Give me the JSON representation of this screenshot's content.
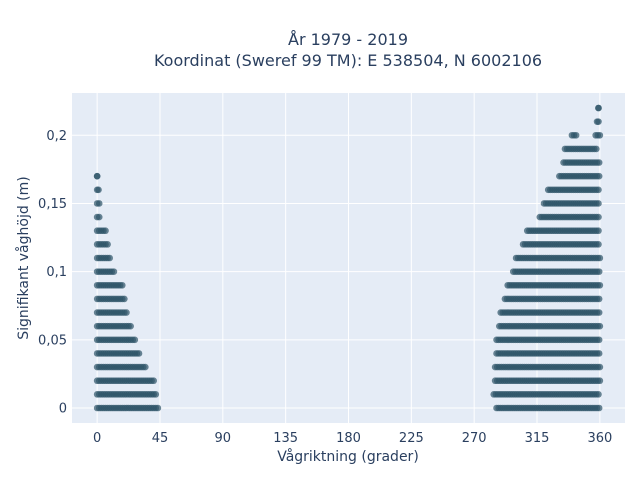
{
  "chart_data": {
    "type": "scatter",
    "title_lines": [
      "År 1979 - 2019",
      "Koordinat (Sweref 99 TM): E 538504, N 6002106"
    ],
    "xlabel": "Vågriktning (grader)",
    "ylabel": "Signifikant våghöjd (m)",
    "xlim": [
      -18,
      378
    ],
    "ylim": [
      -0.011,
      0.231
    ],
    "xticks": [
      0,
      45,
      90,
      135,
      180,
      225,
      270,
      315,
      360
    ],
    "xtick_labels": [
      "0",
      "45",
      "90",
      "135",
      "180",
      "225",
      "270",
      "315",
      "360"
    ],
    "yticks": [
      0,
      0.05,
      0.1,
      0.15,
      0.2
    ],
    "ytick_labels": [
      "0",
      "0,05",
      "0,1",
      "0,15",
      "0,2"
    ],
    "grid": true,
    "colors": {
      "marker": "#2e5468",
      "plot_bg": "#e5ecf6",
      "grid": "#ffffff",
      "text": "#2a3f5f"
    },
    "point_bands": [
      {
        "y": 0.0,
        "x_ranges": [
          [
            0,
            44
          ],
          [
            286,
            360
          ]
        ]
      },
      {
        "y": 0.01,
        "x_ranges": [
          [
            0,
            43
          ],
          [
            284,
            360
          ]
        ]
      },
      {
        "y": 0.02,
        "x_ranges": [
          [
            0,
            41
          ],
          [
            285,
            360
          ]
        ]
      },
      {
        "y": 0.03,
        "x_ranges": [
          [
            0,
            35
          ],
          [
            285,
            360
          ]
        ]
      },
      {
        "y": 0.04,
        "x_ranges": [
          [
            0,
            30
          ],
          [
            286,
            360
          ]
        ]
      },
      {
        "y": 0.05,
        "x_ranges": [
          [
            0,
            28
          ],
          [
            286,
            360
          ]
        ]
      },
      {
        "y": 0.06,
        "x_ranges": [
          [
            0,
            25
          ],
          [
            288,
            360
          ]
        ]
      },
      {
        "y": 0.07,
        "x_ranges": [
          [
            0,
            22
          ],
          [
            289,
            360
          ]
        ]
      },
      {
        "y": 0.08,
        "x_ranges": [
          [
            0,
            20
          ],
          [
            292,
            360
          ]
        ]
      },
      {
        "y": 0.09,
        "x_ranges": [
          [
            0,
            18
          ],
          [
            294,
            360
          ]
        ]
      },
      {
        "y": 0.1,
        "x_ranges": [
          [
            0,
            12
          ],
          [
            298,
            360
          ]
        ]
      },
      {
        "y": 0.11,
        "x_ranges": [
          [
            0,
            10
          ],
          [
            300,
            360
          ]
        ]
      },
      {
        "y": 0.12,
        "x_ranges": [
          [
            0,
            8
          ],
          [
            305,
            360
          ]
        ]
      },
      {
        "y": 0.13,
        "x_ranges": [
          [
            0,
            6
          ],
          [
            308,
            360
          ]
        ]
      },
      {
        "y": 0.14,
        "x_ranges": [
          [
            0,
            2
          ],
          [
            317,
            360
          ]
        ]
      },
      {
        "y": 0.15,
        "x_ranges": [
          [
            0,
            2
          ],
          [
            320,
            360
          ]
        ]
      },
      {
        "y": 0.16,
        "x_ranges": [
          [
            0,
            1
          ],
          [
            323,
            360
          ]
        ]
      },
      {
        "y": 0.17,
        "x_ranges": [
          [
            0,
            0
          ],
          [
            331,
            360
          ]
        ]
      },
      {
        "y": 0.18,
        "x_ranges": [
          [
            334,
            360
          ]
        ]
      },
      {
        "y": 0.19,
        "x_ranges": [
          [
            335,
            358
          ]
        ]
      },
      {
        "y": 0.2,
        "x_ranges": [
          [
            340,
            344
          ],
          [
            357,
            360
          ]
        ]
      },
      {
        "y": 0.21,
        "x_ranges": [
          [
            358,
            359
          ]
        ]
      },
      {
        "y": 0.22,
        "x_ranges": [
          [
            359,
            359
          ]
        ]
      }
    ]
  }
}
